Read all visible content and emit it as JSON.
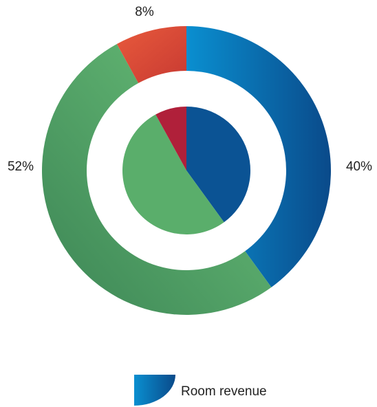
{
  "chart_data": {
    "type": "pie",
    "series": [
      {
        "name": "Room revenue",
        "values": [
          40,
          52,
          8
        ],
        "value_labels": [
          "40%",
          "52%",
          "8%"
        ],
        "colors": [
          "#0a5a9c",
          "#5cb26e",
          "#d94a3a"
        ]
      },
      {
        "values": [
          40,
          52,
          8
        ],
        "colors": [
          "#0b5394",
          "#5aae6b",
          "#b0203a"
        ]
      }
    ]
  }
}
